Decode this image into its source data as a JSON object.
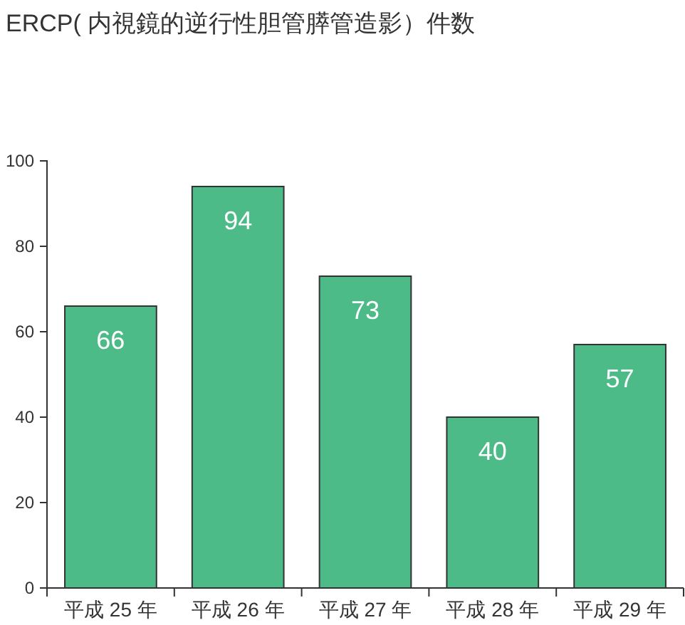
{
  "chart_data": {
    "type": "bar",
    "title": "ERCP( 内視鏡的逆行性胆管膵管造影）件数",
    "categories": [
      "平成 25 年",
      "平成 26 年",
      "平成 27 年",
      "平成 28 年",
      "平成 29 年"
    ],
    "values": [
      66,
      94,
      73,
      40,
      57
    ],
    "color": "#4cbb88",
    "ylim": [
      0,
      100
    ],
    "yticks": [
      0,
      20,
      40,
      60,
      80,
      100
    ],
    "data_labels": true
  }
}
